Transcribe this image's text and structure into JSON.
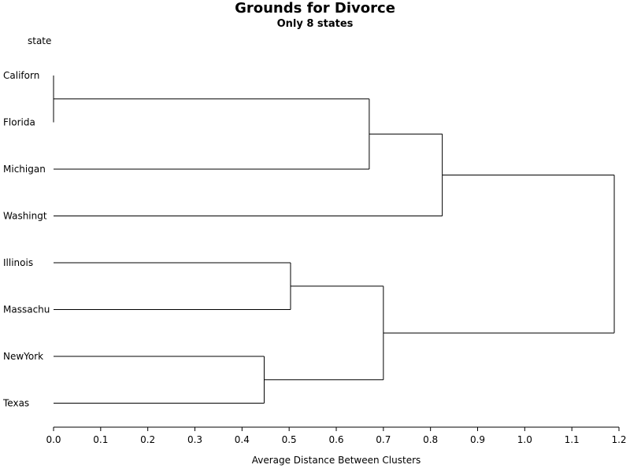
{
  "chart_data": {
    "type": "dendrogram",
    "title": "Grounds for Divorce",
    "subtitle": "Only 8 states",
    "xlabel": "Average Distance Between Clusters",
    "leaf_header": "state",
    "xlim": [
      0,
      1.2
    ],
    "x_ticks": [
      "0.0",
      "0.1",
      "0.2",
      "0.3",
      "0.4",
      "0.5",
      "0.6",
      "0.7",
      "0.8",
      "0.9",
      "1.0",
      "1.1",
      "1.2"
    ],
    "x_tick_values": [
      0,
      0.1,
      0.2,
      0.3,
      0.4,
      0.5,
      0.6,
      0.7,
      0.8,
      0.9,
      1.0,
      1.1,
      1.2
    ],
    "leaves": [
      "Californ",
      "Florida",
      "Michigan",
      "Washingt",
      "Illinois",
      "Massachu",
      "NewYork",
      "Texas"
    ],
    "merges": [
      {
        "left": "L0",
        "right": "L1",
        "height": 0.0
      },
      {
        "left": "L6",
        "right": "L7",
        "height": 0.447
      },
      {
        "left": "L4",
        "right": "L5",
        "height": 0.503
      },
      {
        "left": "C0",
        "right": "L2",
        "height": 0.67
      },
      {
        "left": "C2",
        "right": "C1",
        "height": 0.7
      },
      {
        "left": "C3",
        "right": "L3",
        "height": 0.825
      },
      {
        "left": "C5",
        "right": "C4",
        "height": 1.19
      }
    ]
  }
}
